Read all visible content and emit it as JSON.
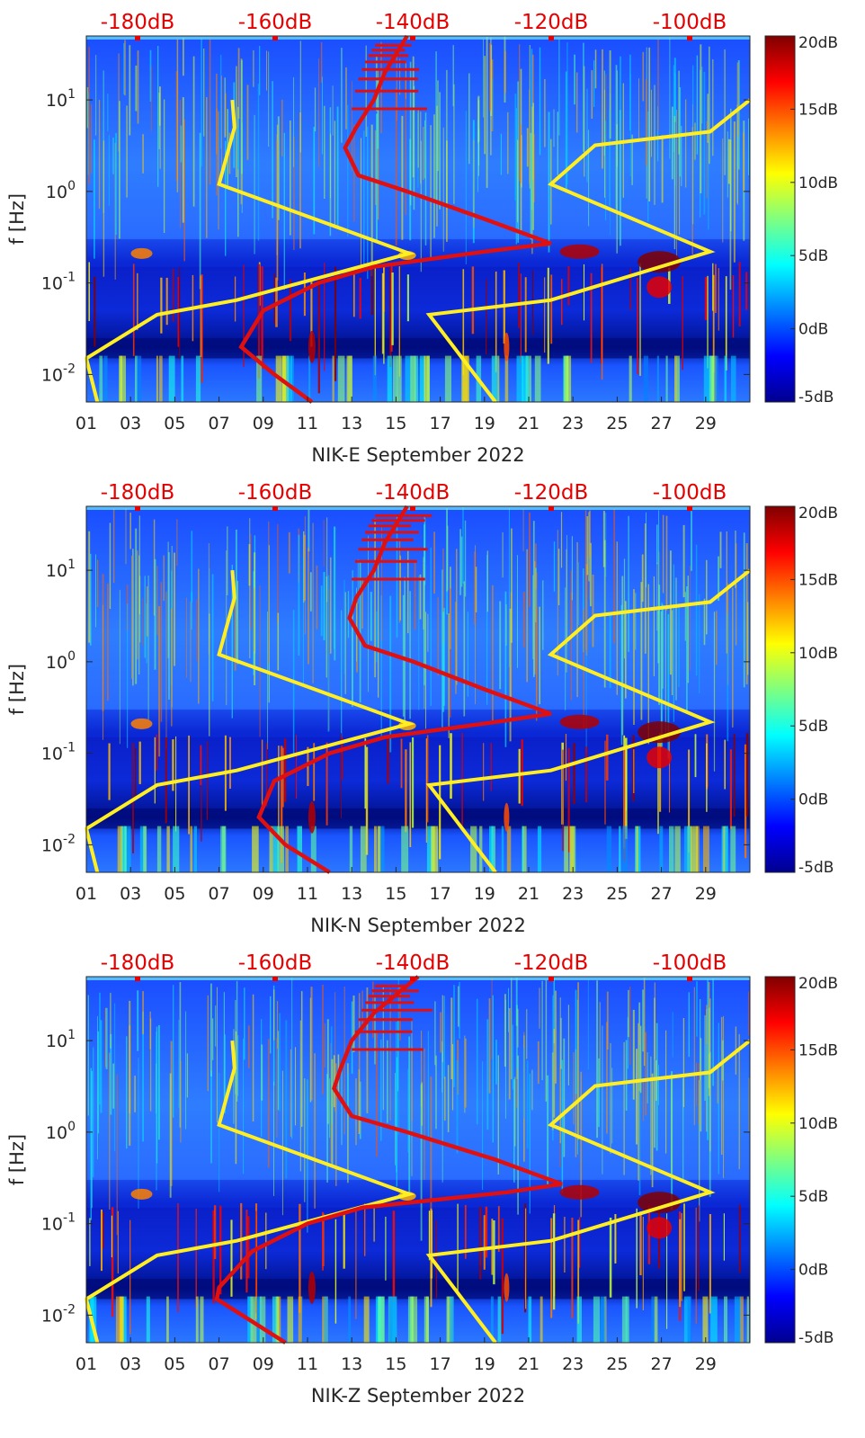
{
  "chart_data": [
    {
      "type": "heatmap",
      "station": "NIK-E",
      "xlabel": "NIK-E September 2022",
      "ylabel": "f [Hz]",
      "x_ticks": [
        "01",
        "03",
        "05",
        "07",
        "09",
        "11",
        "13",
        "15",
        "17",
        "19",
        "21",
        "23",
        "25",
        "27",
        "29"
      ],
      "y_ticks": [
        "10-2",
        "10-1",
        "100",
        "101"
      ],
      "y_scale": "log",
      "ylim": [
        0.005,
        50
      ],
      "xlim": [
        1,
        31
      ],
      "top_axis_labels": [
        "-180dB",
        "-160dB",
        "-140dB",
        "-120dB",
        "-100dB"
      ],
      "colorbar": {
        "labels": [
          "20dB",
          "15dB",
          "10dB",
          "5dB",
          "0dB",
          "-5dB"
        ],
        "range": [
          -5,
          20
        ],
        "colormap": "jet"
      },
      "noise_model_low": [
        [
          10,
          7.6
        ],
        [
          5,
          7.7
        ],
        [
          1.2,
          7.0
        ],
        [
          0.21,
          15.6
        ],
        [
          0.065,
          7.8
        ],
        [
          0.045,
          4.2
        ],
        [
          0.015,
          1.0
        ],
        [
          0.005,
          1.5
        ]
      ],
      "noise_model_high": [
        [
          10,
          31.0
        ],
        [
          4.5,
          29.2
        ],
        [
          3.2,
          24.0
        ],
        [
          1.2,
          22.0
        ],
        [
          0.22,
          29.2
        ],
        [
          0.065,
          22.0
        ],
        [
          0.045,
          16.5
        ],
        [
          0.005,
          19.5
        ]
      ],
      "median_psd": [
        [
          50,
          15.5
        ],
        [
          20,
          14.5
        ],
        [
          10,
          14.0
        ],
        [
          5,
          13.2
        ],
        [
          3,
          12.7
        ],
        [
          1.5,
          13.3
        ],
        [
          1.0,
          15.5
        ],
        [
          0.5,
          19.0
        ],
        [
          0.27,
          22.0
        ],
        [
          0.22,
          19.0
        ],
        [
          0.15,
          14.0
        ],
        [
          0.1,
          11.5
        ],
        [
          0.05,
          9.0
        ],
        [
          0.02,
          8.0
        ],
        [
          0.01,
          9.5
        ],
        [
          0.005,
          11.2
        ]
      ]
    },
    {
      "type": "heatmap",
      "station": "NIK-N",
      "xlabel": "NIK-N September 2022",
      "ylabel": "f [Hz]",
      "x_ticks": [
        "01",
        "03",
        "05",
        "07",
        "09",
        "11",
        "13",
        "15",
        "17",
        "19",
        "21",
        "23",
        "25",
        "27",
        "29"
      ],
      "y_ticks": [
        "10-2",
        "10-1",
        "100",
        "101"
      ],
      "y_scale": "log",
      "ylim": [
        0.005,
        50
      ],
      "xlim": [
        1,
        31
      ],
      "top_axis_labels": [
        "-180dB",
        "-160dB",
        "-140dB",
        "-120dB",
        "-100dB"
      ],
      "colorbar": {
        "labels": [
          "20dB",
          "15dB",
          "10dB",
          "5dB",
          "0dB",
          "-5dB"
        ],
        "range": [
          -5,
          20
        ],
        "colormap": "jet"
      },
      "noise_model_low": [
        [
          10,
          7.6
        ],
        [
          5,
          7.7
        ],
        [
          1.2,
          7.0
        ],
        [
          0.21,
          15.6
        ],
        [
          0.065,
          7.8
        ],
        [
          0.045,
          4.2
        ],
        [
          0.015,
          1.0
        ],
        [
          0.005,
          1.5
        ]
      ],
      "noise_model_high": [
        [
          10,
          31.0
        ],
        [
          4.5,
          29.2
        ],
        [
          3.2,
          24.0
        ],
        [
          1.2,
          22.0
        ],
        [
          0.22,
          29.2
        ],
        [
          0.065,
          22.0
        ],
        [
          0.045,
          16.5
        ],
        [
          0.005,
          19.5
        ]
      ],
      "median_psd": [
        [
          50,
          15.5
        ],
        [
          20,
          14.5
        ],
        [
          10,
          14.0
        ],
        [
          5,
          13.2
        ],
        [
          3,
          12.9
        ],
        [
          1.5,
          13.6
        ],
        [
          1.0,
          15.8
        ],
        [
          0.5,
          19.0
        ],
        [
          0.27,
          22.0
        ],
        [
          0.22,
          19.5
        ],
        [
          0.15,
          14.5
        ],
        [
          0.1,
          12.0
        ],
        [
          0.05,
          9.5
        ],
        [
          0.02,
          8.8
        ],
        [
          0.01,
          10.0
        ],
        [
          0.005,
          12.0
        ]
      ]
    },
    {
      "type": "heatmap",
      "station": "NIK-Z",
      "xlabel": "NIK-Z September 2022",
      "ylabel": "f [Hz]",
      "x_ticks": [
        "01",
        "03",
        "05",
        "07",
        "09",
        "11",
        "13",
        "15",
        "17",
        "19",
        "21",
        "23",
        "25",
        "27",
        "29"
      ],
      "y_ticks": [
        "10-2",
        "10-1",
        "100",
        "101"
      ],
      "y_scale": "log",
      "ylim": [
        0.005,
        50
      ],
      "xlim": [
        1,
        31
      ],
      "top_axis_labels": [
        "-180dB",
        "-160dB",
        "-140dB",
        "-120dB",
        "-100dB"
      ],
      "colorbar": {
        "labels": [
          "20dB",
          "15dB",
          "10dB",
          "5dB",
          "0dB",
          "-5dB"
        ],
        "range": [
          -5,
          20
        ],
        "colormap": "jet"
      },
      "noise_model_low": [
        [
          10,
          7.6
        ],
        [
          5,
          7.7
        ],
        [
          1.2,
          7.0
        ],
        [
          0.21,
          15.6
        ],
        [
          0.065,
          7.8
        ],
        [
          0.045,
          4.2
        ],
        [
          0.015,
          1.0
        ],
        [
          0.005,
          1.5
        ]
      ],
      "noise_model_high": [
        [
          10,
          31.0
        ],
        [
          4.5,
          29.2
        ],
        [
          3.2,
          24.0
        ],
        [
          1.2,
          22.0
        ],
        [
          0.22,
          29.2
        ],
        [
          0.065,
          22.0
        ],
        [
          0.045,
          16.5
        ],
        [
          0.005,
          19.5
        ]
      ],
      "median_psd": [
        [
          50,
          16.0
        ],
        [
          20,
          14.0
        ],
        [
          10,
          13.0
        ],
        [
          5,
          12.5
        ],
        [
          3,
          12.2
        ],
        [
          1.5,
          13.0
        ],
        [
          1.0,
          15.5
        ],
        [
          0.5,
          19.5
        ],
        [
          0.27,
          22.5
        ],
        [
          0.22,
          20.0
        ],
        [
          0.15,
          13.5
        ],
        [
          0.1,
          11.0
        ],
        [
          0.05,
          8.5
        ],
        [
          0.02,
          7.0
        ],
        [
          0.015,
          6.9
        ],
        [
          0.005,
          10.0
        ]
      ]
    }
  ],
  "colors": {
    "noise_model": "#ffee22",
    "median_psd": "#e01010",
    "top_labels": "#e60000"
  }
}
